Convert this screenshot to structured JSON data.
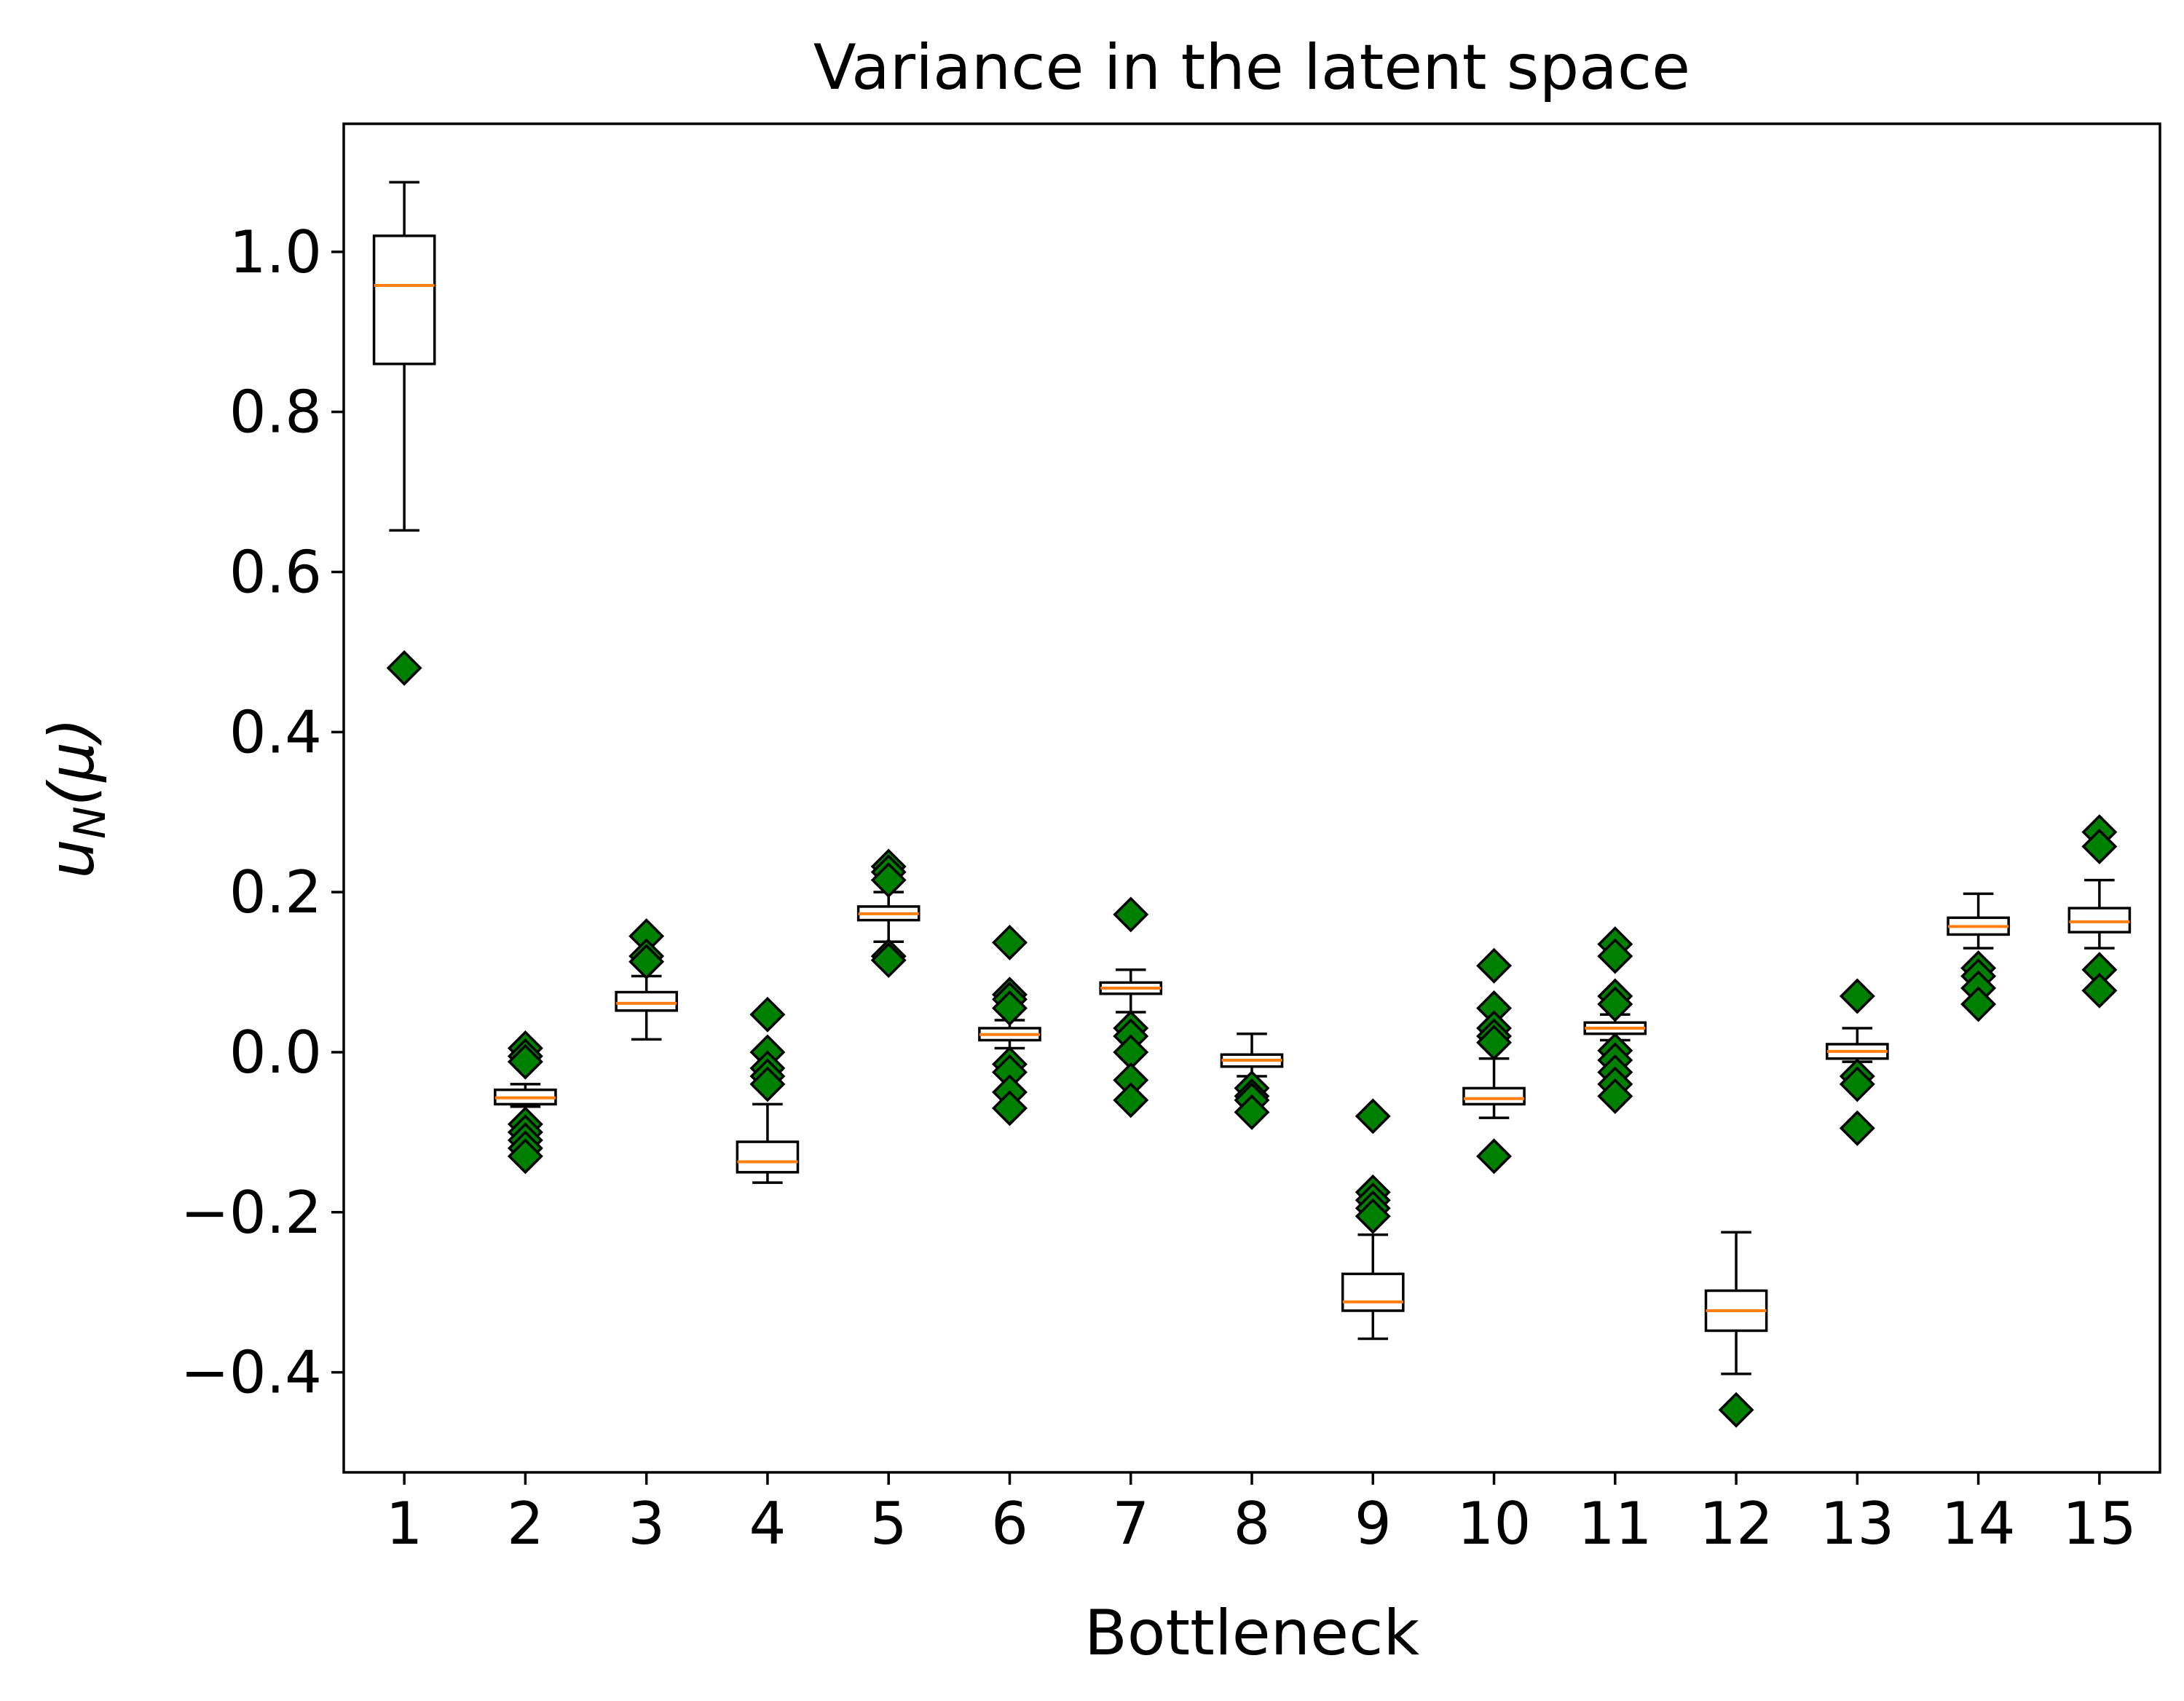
{
  "chart_data": {
    "type": "box",
    "title": "Variance in the latent space",
    "xlabel": "Bottleneck",
    "ylabel_main": "u",
    "ylabel_sub": "N",
    "ylabel_paren": "(μ)",
    "ylim": [
      -0.525,
      1.16
    ],
    "xlim": [
      0.5,
      15.5
    ],
    "yticks": [
      -0.4,
      -0.2,
      0.0,
      0.2,
      0.4,
      0.6,
      0.8,
      1.0
    ],
    "ytick_labels": [
      "−0.4",
      "−0.2",
      "0.0",
      "0.2",
      "0.4",
      "0.6",
      "0.8",
      "1.0"
    ],
    "categories": [
      "1",
      "2",
      "3",
      "4",
      "5",
      "6",
      "7",
      "8",
      "9",
      "10",
      "11",
      "12",
      "13",
      "14",
      "15"
    ],
    "box_color": "#000000",
    "median_color": "#ff7f0e",
    "outlier_color": "#008000",
    "boxes": [
      {
        "q1": 0.86,
        "median": 0.958,
        "q3": 1.02,
        "whisker_low": 0.652,
        "whisker_high": 1.087,
        "outliers": [
          0.48
        ]
      },
      {
        "q1": -0.065,
        "median": -0.057,
        "q3": -0.047,
        "whisker_low": -0.068,
        "whisker_high": -0.04,
        "outliers": [
          0.005,
          -0.005,
          -0.012,
          -0.09,
          -0.1,
          -0.11,
          -0.12,
          -0.13
        ]
      },
      {
        "q1": 0.052,
        "median": 0.061,
        "q3": 0.075,
        "whisker_low": 0.016,
        "whisker_high": 0.095,
        "outliers": [
          0.145,
          0.12,
          0.113
        ]
      },
      {
        "q1": -0.15,
        "median": -0.137,
        "q3": -0.112,
        "whisker_low": -0.163,
        "whisker_high": -0.065,
        "outliers": [
          0.047,
          0.0,
          -0.02,
          -0.03,
          -0.04
        ]
      },
      {
        "q1": 0.165,
        "median": 0.173,
        "q3": 0.182,
        "whisker_low": 0.138,
        "whisker_high": 0.2,
        "outliers": [
          0.232,
          0.225,
          0.215,
          0.12,
          0.115
        ]
      },
      {
        "q1": 0.015,
        "median": 0.022,
        "q3": 0.03,
        "whisker_low": 0.005,
        "whisker_high": 0.04,
        "outliers": [
          0.137,
          0.072,
          0.066,
          0.055,
          -0.015,
          -0.025,
          -0.05,
          -0.07
        ]
      },
      {
        "q1": 0.073,
        "median": 0.08,
        "q3": 0.087,
        "whisker_low": 0.05,
        "whisker_high": 0.103,
        "outliers": [
          0.172,
          0.03,
          0.02,
          0.0,
          -0.035,
          -0.06
        ]
      },
      {
        "q1": -0.018,
        "median": -0.01,
        "q3": -0.003,
        "whisker_low": -0.03,
        "whisker_high": 0.023,
        "outliers": [
          -0.045,
          -0.055,
          -0.06,
          -0.075
        ]
      },
      {
        "q1": -0.323,
        "median": -0.312,
        "q3": -0.277,
        "whisker_low": -0.358,
        "whisker_high": -0.228,
        "outliers": [
          -0.08,
          -0.175,
          -0.185,
          -0.195,
          -0.205
        ]
      },
      {
        "q1": -0.065,
        "median": -0.058,
        "q3": -0.045,
        "whisker_low": -0.082,
        "whisker_high": -0.008,
        "outliers": [
          0.108,
          0.055,
          0.03,
          0.02,
          0.012,
          -0.13
        ]
      },
      {
        "q1": 0.023,
        "median": 0.03,
        "q3": 0.037,
        "whisker_low": 0.015,
        "whisker_high": 0.047,
        "outliers": [
          0.135,
          0.12,
          0.07,
          0.06,
          0.002,
          -0.01,
          -0.025,
          -0.04,
          -0.055
        ]
      },
      {
        "q1": -0.348,
        "median": -0.323,
        "q3": -0.298,
        "whisker_low": -0.402,
        "whisker_high": -0.225,
        "outliers": [
          -0.447
        ]
      },
      {
        "q1": -0.008,
        "median": 0.001,
        "q3": 0.01,
        "whisker_low": -0.012,
        "whisker_high": 0.03,
        "outliers": [
          0.07,
          -0.03,
          -0.04,
          -0.095
        ]
      },
      {
        "q1": 0.147,
        "median": 0.157,
        "q3": 0.168,
        "whisker_low": 0.13,
        "whisker_high": 0.198,
        "outliers": [
          0.105,
          0.095,
          0.08,
          0.06
        ]
      },
      {
        "q1": 0.15,
        "median": 0.163,
        "q3": 0.18,
        "whisker_low": 0.13,
        "whisker_high": 0.215,
        "outliers": [
          0.275,
          0.257,
          0.103,
          0.077
        ]
      }
    ]
  }
}
